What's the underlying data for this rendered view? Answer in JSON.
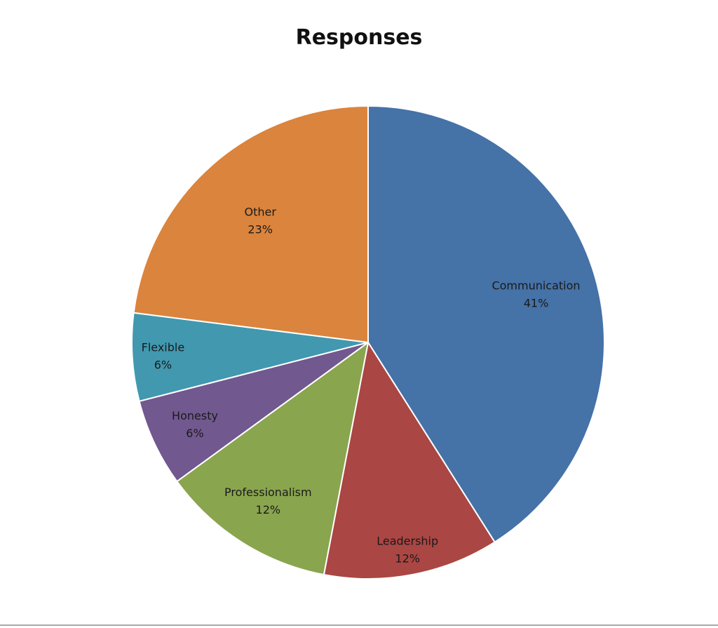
{
  "chart_data": {
    "type": "pie",
    "title": "Responses",
    "slices": [
      {
        "label": "Communication",
        "value": 41,
        "display": "41%",
        "color": "#4572a7"
      },
      {
        "label": "Leadership",
        "value": 12,
        "display": "12%",
        "color": "#aa4643"
      },
      {
        "label": "Professionalism",
        "value": 12,
        "display": "12%",
        "color": "#89a54e"
      },
      {
        "label": "Honesty",
        "value": 6,
        "display": "6%",
        "color": "#71588f"
      },
      {
        "label": "Flexible",
        "value": 6,
        "display": "6%",
        "color": "#4198af"
      },
      {
        "label": "Other",
        "value": 23,
        "display": "23%",
        "color": "#db843d"
      }
    ],
    "start_angle": "12 o'clock",
    "direction": "clockwise",
    "legend": "none",
    "data_labels": "inside"
  }
}
